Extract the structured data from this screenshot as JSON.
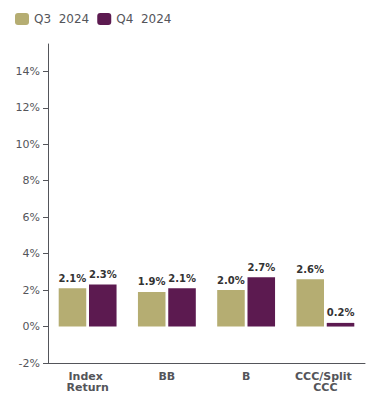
{
  "chart_data": {
    "type": "bar",
    "categories": [
      "Index Return",
      "BB",
      "B",
      "CCC/Split CCC"
    ],
    "series": [
      {
        "name": "Q3  2024",
        "color": "#b5ad72",
        "values": [
          2.1,
          1.9,
          2.0,
          2.6
        ],
        "value_labels": [
          "2.1%",
          "1.9%",
          "2.0%",
          "2.6%"
        ]
      },
      {
        "name": "Q4  2024",
        "color": "#5c1a50",
        "values": [
          2.3,
          2.1,
          2.7,
          0.2
        ],
        "value_labels": [
          "2.3%",
          "2.1%",
          "2.7%",
          "0.2%"
        ]
      }
    ],
    "ylim": [
      -2,
      15.5
    ],
    "yticks": [
      {
        "value": -2,
        "label": "-2%"
      },
      {
        "value": 0,
        "label": "0%"
      },
      {
        "value": 2,
        "label": "2%"
      },
      {
        "value": 4,
        "label": "4%"
      },
      {
        "value": 6,
        "label": "6%"
      },
      {
        "value": 8,
        "label": "8%"
      },
      {
        "value": 10,
        "label": "10%"
      },
      {
        "value": 12,
        "label": "12%"
      },
      {
        "value": 14,
        "label": "14%"
      }
    ],
    "data_labels": true,
    "legend": "upper left",
    "grid": false
  }
}
